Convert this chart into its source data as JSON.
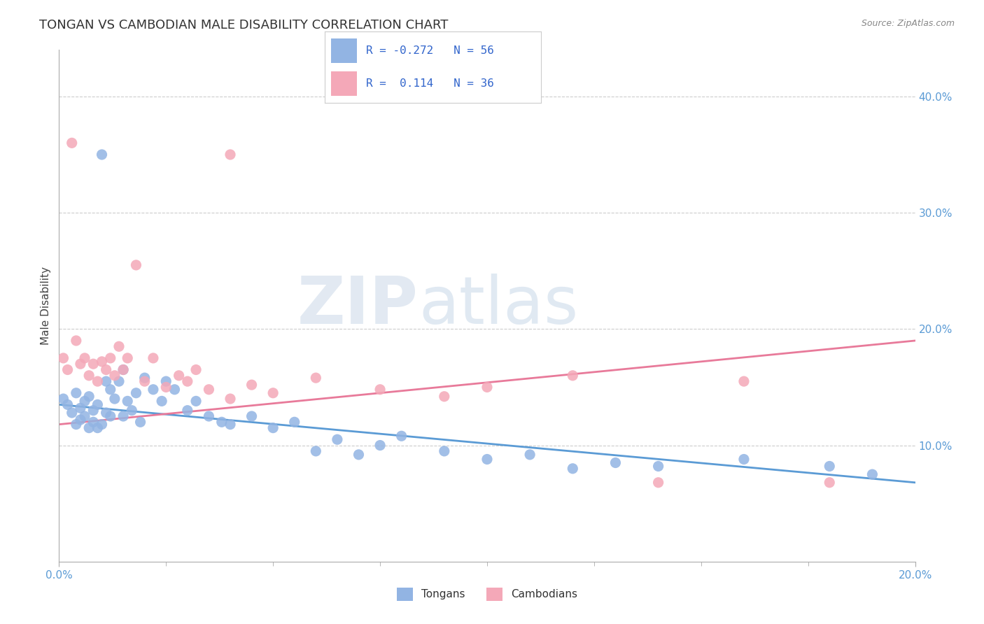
{
  "title": "TONGAN VS CAMBODIAN MALE DISABILITY CORRELATION CHART",
  "source": "Source: ZipAtlas.com",
  "ylabel": "Male Disability",
  "xlim": [
    0.0,
    0.2
  ],
  "ylim": [
    0.0,
    0.44
  ],
  "yticks_right": [
    0.1,
    0.2,
    0.3,
    0.4
  ],
  "ytick_labels_right": [
    "10.0%",
    "20.0%",
    "30.0%",
    "40.0%"
  ],
  "ygrid_lines": [
    0.1,
    0.2,
    0.3,
    0.4
  ],
  "tongan_color": "#92b4e3",
  "cambodian_color": "#f4a8b8",
  "tongan_line_color": "#5b9bd5",
  "cambodian_line_color": "#e87a9a",
  "tongan_r": -0.272,
  "tongan_n": 56,
  "cambodian_r": 0.114,
  "cambodian_n": 36,
  "watermark_zip": "ZIP",
  "watermark_atlas": "atlas",
  "background_color": "#ffffff",
  "tongan_x": [
    0.001,
    0.002,
    0.003,
    0.004,
    0.004,
    0.005,
    0.005,
    0.006,
    0.006,
    0.007,
    0.007,
    0.008,
    0.008,
    0.009,
    0.009,
    0.01,
    0.01,
    0.011,
    0.011,
    0.012,
    0.012,
    0.013,
    0.014,
    0.015,
    0.015,
    0.016,
    0.017,
    0.018,
    0.019,
    0.02,
    0.022,
    0.024,
    0.025,
    0.027,
    0.03,
    0.032,
    0.035,
    0.038,
    0.04,
    0.045,
    0.05,
    0.055,
    0.06,
    0.065,
    0.07,
    0.075,
    0.08,
    0.09,
    0.1,
    0.11,
    0.12,
    0.13,
    0.14,
    0.16,
    0.18,
    0.19
  ],
  "tongan_y": [
    0.14,
    0.135,
    0.128,
    0.145,
    0.118,
    0.132,
    0.122,
    0.138,
    0.125,
    0.142,
    0.115,
    0.13,
    0.12,
    0.135,
    0.115,
    0.35,
    0.118,
    0.155,
    0.128,
    0.148,
    0.125,
    0.14,
    0.155,
    0.165,
    0.125,
    0.138,
    0.13,
    0.145,
    0.12,
    0.158,
    0.148,
    0.138,
    0.155,
    0.148,
    0.13,
    0.138,
    0.125,
    0.12,
    0.118,
    0.125,
    0.115,
    0.12,
    0.095,
    0.105,
    0.092,
    0.1,
    0.108,
    0.095,
    0.088,
    0.092,
    0.08,
    0.085,
    0.082,
    0.088,
    0.082,
    0.075
  ],
  "cambodian_x": [
    0.001,
    0.002,
    0.003,
    0.004,
    0.005,
    0.006,
    0.007,
    0.008,
    0.009,
    0.01,
    0.011,
    0.012,
    0.013,
    0.014,
    0.015,
    0.016,
    0.018,
    0.02,
    0.022,
    0.025,
    0.028,
    0.03,
    0.032,
    0.035,
    0.04,
    0.045,
    0.05,
    0.06,
    0.075,
    0.09,
    0.1,
    0.12,
    0.14,
    0.16,
    0.18,
    0.04
  ],
  "cambodian_y": [
    0.175,
    0.165,
    0.36,
    0.19,
    0.17,
    0.175,
    0.16,
    0.17,
    0.155,
    0.172,
    0.165,
    0.175,
    0.16,
    0.185,
    0.165,
    0.175,
    0.255,
    0.155,
    0.175,
    0.15,
    0.16,
    0.155,
    0.165,
    0.148,
    0.14,
    0.152,
    0.145,
    0.158,
    0.148,
    0.142,
    0.15,
    0.16,
    0.068,
    0.155,
    0.068,
    0.35
  ]
}
